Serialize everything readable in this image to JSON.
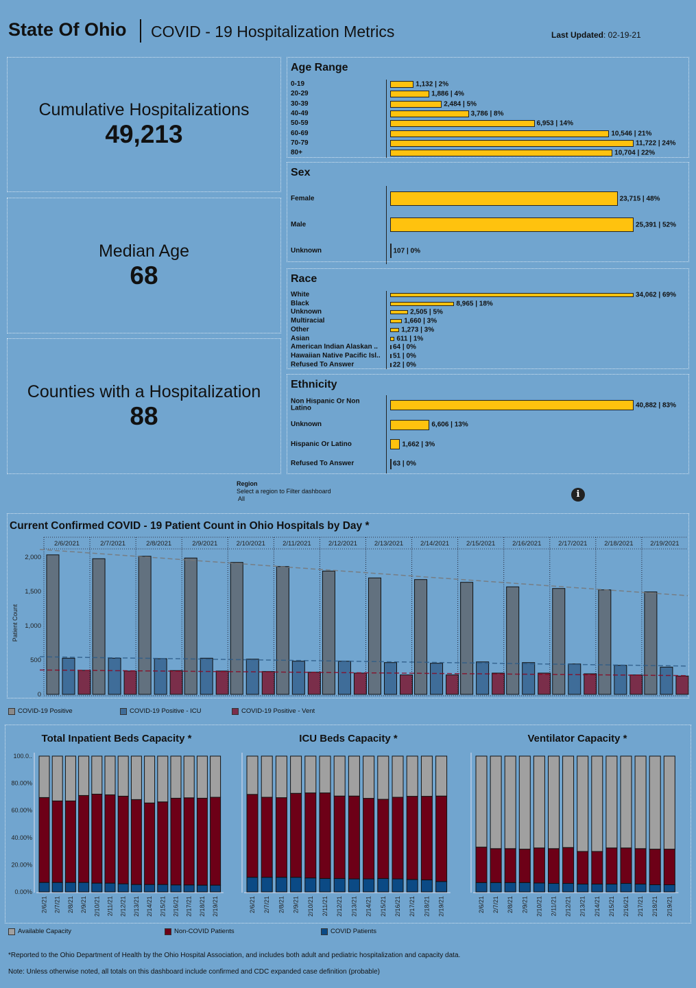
{
  "header": {
    "title": "State Of Ohio",
    "subtitle": "COVID - 19 Hospitalization Metrics",
    "updated_label": "Last Updated",
    "updated_value": ": 02-19-21"
  },
  "kpis": [
    {
      "label": "Cumulative Hospitalizations",
      "value": "49,213"
    },
    {
      "label": "Median Age",
      "value": "68"
    },
    {
      "label": "Counties with a Hospitalization",
      "value": "88"
    }
  ],
  "bar_color": "#ffc20e",
  "panels": {
    "age": {
      "title": "Age Range",
      "rows": [
        {
          "label": "0-19",
          "count": 1132,
          "text": "1,132 | 2%"
        },
        {
          "label": "20-29",
          "count": 1886,
          "text": "1,886 | 4%"
        },
        {
          "label": "30-39",
          "count": 2484,
          "text": "2,484 | 5%"
        },
        {
          "label": "40-49",
          "count": 3786,
          "text": "3,786 | 8%"
        },
        {
          "label": "50-59",
          "count": 6953,
          "text": "6,953 | 14%"
        },
        {
          "label": "60-69",
          "count": 10546,
          "text": "10,546 | 21%"
        },
        {
          "label": "70-79",
          "count": 11722,
          "text": "11,722 | 24%"
        },
        {
          "label": "80+",
          "count": 10704,
          "text": "10,704 | 22%"
        }
      ]
    },
    "sex": {
      "title": "Sex",
      "rows": [
        {
          "label": "Female",
          "count": 23715,
          "text": "23,715 | 48%"
        },
        {
          "label": "Male",
          "count": 25391,
          "text": "25,391 | 52%"
        },
        {
          "label": "Unknown",
          "count": 107,
          "text": "107 | 0%"
        }
      ]
    },
    "race": {
      "title": "Race",
      "rows": [
        {
          "label": "White",
          "count": 34062,
          "text": "34,062 | 69%"
        },
        {
          "label": "Black",
          "count": 8965,
          "text": "8,965 | 18%"
        },
        {
          "label": "Unknown",
          "count": 2505,
          "text": "2,505 | 5%"
        },
        {
          "label": "Multiracial",
          "count": 1660,
          "text": "1,660 | 3%"
        },
        {
          "label": "Other",
          "count": 1273,
          "text": "1,273 | 3%"
        },
        {
          "label": "Asian",
          "count": 611,
          "text": "611 | 1%"
        },
        {
          "label": "American Indian Alaskan ..",
          "count": 64,
          "text": "64 | 0%"
        },
        {
          "label": "Hawaiian Native Pacific Isl..",
          "count": 51,
          "text": "51 | 0%"
        },
        {
          "label": "Refused To Answer",
          "count": 22,
          "text": "22 | 0%"
        }
      ]
    },
    "ethnicity": {
      "title": "Ethnicity",
      "rows": [
        {
          "label": "Non Hispanic Or Non Latino",
          "count": 40882,
          "text": "40,882 | 83%"
        },
        {
          "label": "Unknown",
          "count": 6606,
          "text": "6,606 | 13%"
        },
        {
          "label": "Hispanic Or Latino",
          "count": 1662,
          "text": "1,662 | 3%"
        },
        {
          "label": "Refused To Answer",
          "count": 63,
          "text": "63 | 0%"
        }
      ]
    }
  },
  "region": {
    "label": "Region",
    "hint": "Select a region to Filter dashboard",
    "value": "All",
    "info_icon": "info-icon"
  },
  "chart_data": [
    {
      "type": "bar",
      "title": "Current Confirmed COVID - 19 Patient Count in Ohio Hospitals by Day *",
      "ylabel": "Patient Count",
      "ylim": [
        0,
        2100
      ],
      "yticks": [
        "0",
        "500",
        "1,000",
        "1,500",
        "2,000"
      ],
      "grid": false,
      "categories": [
        "2/6/2021",
        "2/7/2021",
        "2/8/2021",
        "2/9/2021",
        "2/10/2021",
        "2/11/2021",
        "2/12/2021",
        "2/13/2021",
        "2/14/2021",
        "2/15/2021",
        "2/16/2021",
        "2/17/2021",
        "2/18/2021",
        "2/19/2021"
      ],
      "series": [
        {
          "name": "COVID-19 Positive",
          "color": "#62717f",
          "values": [
            2033,
            1977,
            2013,
            1987,
            1923,
            1863,
            1797,
            1697,
            1673,
            1633,
            1567,
            1543,
            1523,
            1493
          ]
        },
        {
          "name": "COVID-19 Positive - ICU",
          "color": "#3f6d99",
          "values": [
            527,
            527,
            520,
            527,
            513,
            483,
            483,
            463,
            453,
            473,
            463,
            443,
            423,
            397
          ]
        },
        {
          "name": "COVID-19 Positive - Vent",
          "color": "#7a2e4a",
          "values": [
            350,
            340,
            347,
            340,
            333,
            323,
            310,
            283,
            283,
            310,
            310,
            300,
            283,
            267
          ]
        }
      ],
      "trend_lines": "dashed linear trend per series"
    },
    {
      "type": "bar",
      "stacked": true,
      "title": "Total Inpatient Beds Capacity *",
      "yticks": [
        "0.00%",
        "20.00%",
        "40.00%",
        "60.00%",
        "80.00%",
        "100.0.."
      ],
      "ylim": [
        0,
        100
      ],
      "categories": [
        "2/6/21",
        "2/7/21",
        "2/8/21",
        "2/9/21",
        "2/10/21",
        "2/11/21",
        "2/12/21",
        "2/13/21",
        "2/14/21",
        "2/15/21",
        "2/16/21",
        "2/17/21",
        "2/18/21",
        "2/19/21"
      ],
      "series": [
        {
          "name": "COVID Patients",
          "values": [
            7,
            7,
            7,
            7,
            6.5,
            6.5,
            6,
            5.5,
            5.5,
            5.5,
            5.2,
            5.2,
            5,
            5
          ]
        },
        {
          "name": "Non-COVID Patients",
          "values": [
            62.5,
            60,
            60,
            64,
            65.5,
            65,
            64.5,
            62.5,
            60,
            60.8,
            63.8,
            64.1,
            64,
            64.7
          ]
        },
        {
          "name": "Available Capacity",
          "values": [
            30.5,
            33,
            33,
            29,
            28,
            28.5,
            29.5,
            32,
            34.5,
            33.7,
            31,
            30.7,
            31,
            30.3
          ]
        }
      ]
    },
    {
      "type": "bar",
      "stacked": true,
      "title": "ICU Beds Capacity *",
      "ylim": [
        0,
        100
      ],
      "categories": [
        "2/6/21",
        "2/7/21",
        "2/8/21",
        "2/9/21",
        "2/10/21",
        "2/11/21",
        "2/12/21",
        "2/13/21",
        "2/14/21",
        "2/15/21",
        "2/16/21",
        "2/17/21",
        "2/18/21",
        "2/19/21"
      ],
      "series": [
        {
          "name": "COVID Patients",
          "values": [
            10.8,
            10.8,
            10.8,
            10.8,
            10.3,
            9.9,
            9.9,
            9.6,
            9.6,
            9.9,
            9.6,
            9.2,
            8.9,
            7.7
          ]
        },
        {
          "name": "Non-COVID Patients",
          "values": [
            61,
            58.9,
            58.6,
            61.8,
            62.6,
            63,
            60.7,
            61,
            59.3,
            58.3,
            60.1,
            61.2,
            61.5,
            62.9
          ]
        },
        {
          "name": "Available Capacity",
          "values": [
            28.2,
            30.3,
            30.6,
            27.4,
            27.1,
            27.1,
            29.4,
            29.4,
            31.1,
            31.8,
            30.3,
            29.6,
            29.6,
            29.4
          ]
        }
      ]
    },
    {
      "type": "bar",
      "stacked": true,
      "title": "Ventilator Capacity *",
      "ylim": [
        0,
        100
      ],
      "categories": [
        "2/6/21",
        "2/7/21",
        "2/8/21",
        "2/9/21",
        "2/10/21",
        "2/11/21",
        "2/12/21",
        "2/13/21",
        "2/14/21",
        "2/15/21",
        "2/16/21",
        "2/17/21",
        "2/18/21",
        "2/19/21"
      ],
      "series": [
        {
          "name": "COVID Patients",
          "values": [
            6.9,
            6.9,
            6.9,
            6.9,
            6.6,
            6.3,
            6.3,
            5.8,
            5.8,
            5.8,
            6.3,
            5.8,
            5.3,
            5.3
          ]
        },
        {
          "name": "Non-COVID Patients",
          "values": [
            26.1,
            25,
            25,
            24.6,
            25.8,
            25.6,
            26.4,
            24,
            24,
            26.6,
            26.1,
            26.1,
            26.2,
            26.2
          ]
        },
        {
          "name": "Available Capacity",
          "values": [
            67,
            68.1,
            68.1,
            68.5,
            67.6,
            68.1,
            67.3,
            70.2,
            70.2,
            67.6,
            67.6,
            68.1,
            68.5,
            68.5
          ]
        }
      ]
    }
  ],
  "capacity_legend": [
    {
      "label": "Available Capacity",
      "color": "#a0a0a0"
    },
    {
      "label": "Non-COVID Patients",
      "color": "#6d0017"
    },
    {
      "label": "COVID Patients",
      "color": "#0b4a85"
    }
  ],
  "footnotes": [
    "*Reported to the Ohio Department of Health by the Ohio Hospital Association, and includes both adult and pediatric hospitalization and capacity data.",
    "Note: Unless otherwise noted, all totals on this dashboard include confirmed and CDC expanded case definition (probable)"
  ]
}
